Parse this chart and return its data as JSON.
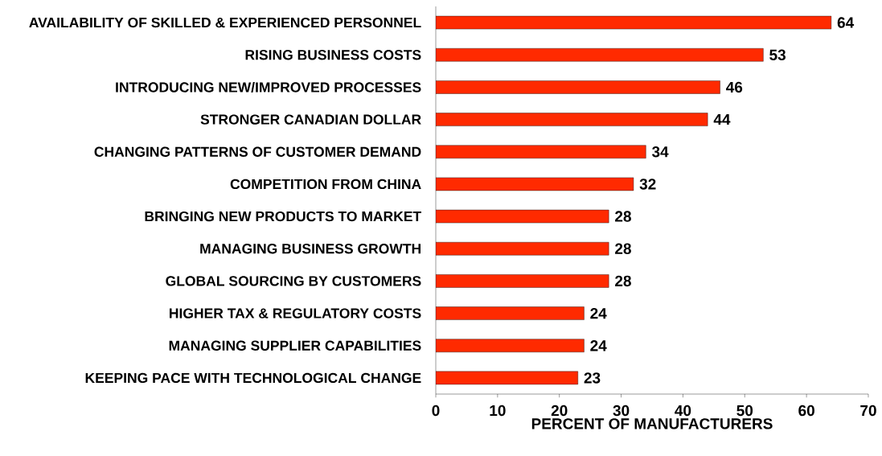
{
  "chart_data": {
    "type": "bar",
    "orientation": "horizontal",
    "xlabel": "PERCENT OF MANUFACTURERS",
    "categories": [
      "AVAILABILITY OF SKILLED & EXPERIENCED PERSONNEL",
      "RISING BUSINESS COSTS",
      "INTRODUCING NEW/IMPROVED PROCESSES",
      "STRONGER CANADIAN DOLLAR",
      "CHANGING PATTERNS OF CUSTOMER DEMAND",
      "COMPETITION FROM CHINA",
      "BRINGING NEW PRODUCTS TO MARKET",
      "MANAGING BUSINESS GROWTH",
      "GLOBAL SOURCING BY CUSTOMERS",
      "HIGHER TAX & REGULATORY COSTS",
      "MANAGING SUPPLIER CAPABILITIES",
      "KEEPING PACE WITH TECHNOLOGICAL CHANGE"
    ],
    "values": [
      64,
      53,
      46,
      44,
      34,
      32,
      28,
      28,
      28,
      24,
      24,
      23
    ],
    "color": "#ff2a00",
    "data_labels": true,
    "grid": false,
    "xlim": [
      0,
      70
    ],
    "xticks": [
      0,
      10,
      20,
      30,
      40,
      50,
      60,
      70
    ]
  }
}
